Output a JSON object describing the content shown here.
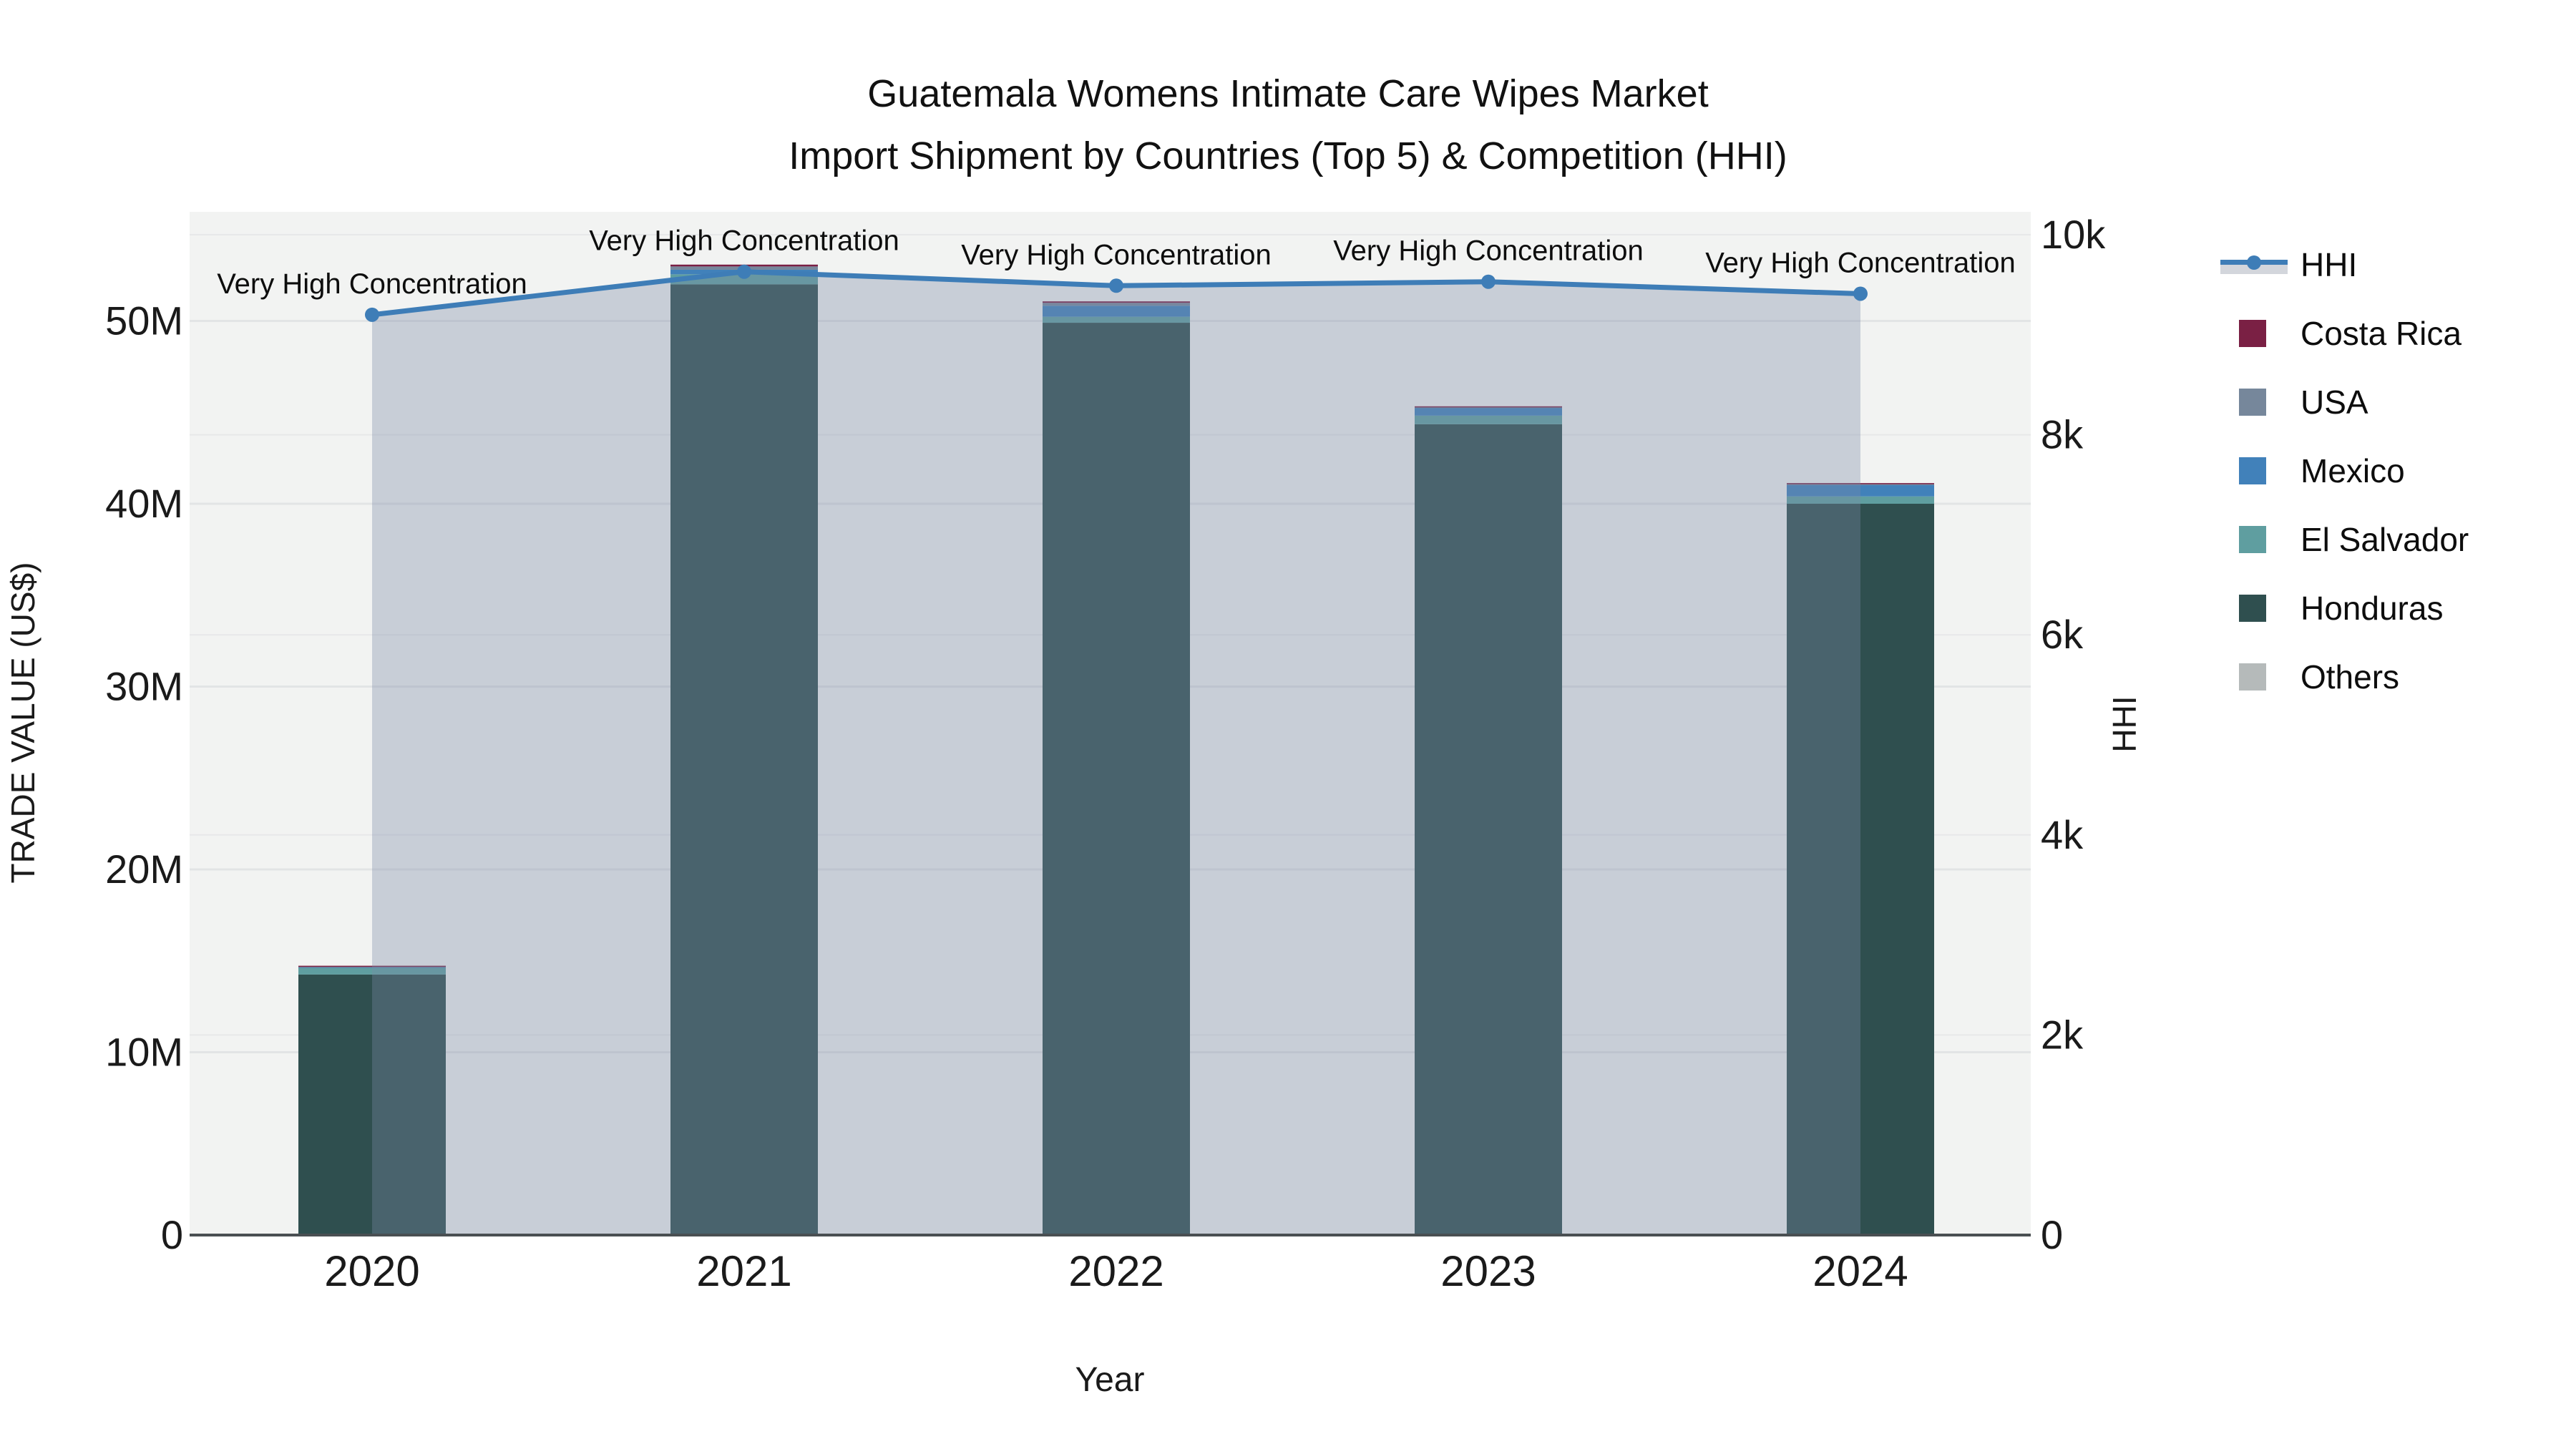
{
  "title": {
    "line1": "Guatemala Womens Intimate Care Wipes Market",
    "line2": "Import Shipment by Countries (Top 5) & Competition (HHI)"
  },
  "axes": {
    "x_title": "Year",
    "y_left_title": "TRADE VALUE (US$)",
    "y_right_title": "HHI",
    "y_left_tick_labels": [
      "0",
      "10M",
      "20M",
      "30M",
      "40M",
      "50M"
    ],
    "y_left_tick_values_millions": [
      0,
      10,
      20,
      30,
      40,
      50
    ],
    "y_right_tick_labels": [
      "0",
      "2k",
      "4k",
      "6k",
      "8k",
      "10k"
    ],
    "y_right_tick_values": [
      0,
      2000,
      4000,
      6000,
      8000,
      10000
    ]
  },
  "legend": {
    "items": [
      {
        "label": "HHI",
        "type": "line",
        "color": "#3e7db7"
      },
      {
        "label": "Costa Rica",
        "type": "swatch",
        "color": "#7a2044"
      },
      {
        "label": "USA",
        "type": "swatch",
        "color": "#76879b"
      },
      {
        "label": "Mexico",
        "type": "swatch",
        "color": "#4181ba"
      },
      {
        "label": "El Salvador",
        "type": "swatch",
        "color": "#5f9ea0"
      },
      {
        "label": "Honduras",
        "type": "swatch",
        "color": "#2f4f4f"
      },
      {
        "label": "Others",
        "type": "swatch",
        "color": "#b5baba"
      }
    ]
  },
  "colors": {
    "paper_bg": "#ffffff",
    "plot_bg": "#f2f3f2",
    "gridline": "#e2e4e5",
    "gridline_minor": "#e7e8e9",
    "axis_line": "#4a4f52",
    "hhi_line": "#3e7db7",
    "hhi_area_fill": "rgba(122,138,166,0.35)",
    "text": "#1a1a1a"
  },
  "chart_data": {
    "type": "bar+line",
    "title": "Guatemala Womens Intimate Care Wipes Market Import Shipment by Countries (Top 5) & Competition (HHI)",
    "categories": [
      "2020",
      "2021",
      "2022",
      "2023",
      "2024"
    ],
    "bar_value_unit": "million US$",
    "stack_note": "series listed bottom-to-top of stack",
    "series": [
      {
        "name": "Others",
        "color": "#b5baba",
        "values_millions": [
          0,
          0,
          0,
          0,
          0
        ]
      },
      {
        "name": "Honduras",
        "color": "#2f4f4f",
        "values_millions": [
          14.25,
          52.0,
          49.9,
          44.35,
          40.0
        ]
      },
      {
        "name": "El Salvador",
        "color": "#5f9ea0",
        "values_millions": [
          0.38,
          0.55,
          0.33,
          0.47,
          0.4
        ]
      },
      {
        "name": "Mexico",
        "color": "#4181ba",
        "values_millions": [
          0.04,
          0.25,
          0.6,
          0.43,
          0.63
        ]
      },
      {
        "name": "USA",
        "color": "#76879b",
        "values_millions": [
          0.02,
          0.18,
          0.16,
          0.04,
          0.05
        ]
      },
      {
        "name": "Costa Rica",
        "color": "#7a2044",
        "values_millions": [
          0.04,
          0.1,
          0.08,
          0.04,
          0.05
        ]
      }
    ],
    "bar_totals_millions": [
      14.73,
      53.08,
      51.07,
      45.33,
      41.13
    ],
    "line_series": {
      "name": "HHI",
      "axis": "right",
      "color": "#3e7db7",
      "values": [
        9200,
        9630,
        9490,
        9530,
        9410
      ],
      "area_fill": true
    },
    "annotations": [
      "Very High Concentration",
      "Very High Concentration",
      "Very High Concentration",
      "Very High Concentration",
      "Very High Concentration"
    ],
    "xlabel": "Year",
    "ylabel_left": "TRADE VALUE (US$)",
    "ylabel_right": "HHI",
    "ylim_left_millions": [
      0,
      56
    ],
    "ylim_right": [
      0,
      10230
    ],
    "grid": true,
    "legend_position": "right"
  }
}
